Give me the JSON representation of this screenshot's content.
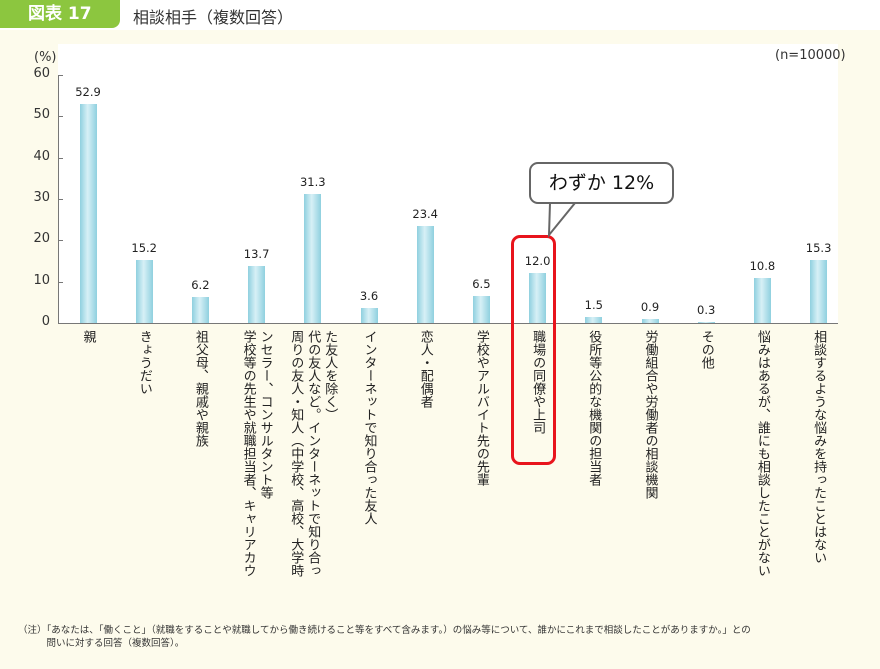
{
  "header": {
    "figure_label": "図表 17",
    "title": "相談相手（複数回答）"
  },
  "chart_data": {
    "type": "bar",
    "title": "相談相手（複数回答）",
    "ylabel": "(%)",
    "xlabel": "",
    "sample_size": "(n=10000)",
    "ylim": [
      0,
      60
    ],
    "yticks": [
      0,
      10,
      20,
      30,
      40,
      50,
      60
    ],
    "grid": false,
    "legend": null,
    "categories": [
      "親",
      "きょうだい",
      "祖父母、親戚や親族",
      "学校等の先生や就職担当者、キャリアカウンセラー、コンサルタント等",
      "周りの友人・知人（中学校、高校、大学時代の友人など。インターネットで知り合った友人を除く）",
      "インターネットで知り合った友人",
      "恋人・配偶者",
      "学校やアルバイト先の先輩",
      "職場の同僚や上司",
      "役所等公的な機関の担当者",
      "労働組合や労働者の相談機関",
      "その他",
      "悩みはあるが、誰にも相談したことがない",
      "相談するような悩みを持ったことはない"
    ],
    "values": [
      52.9,
      15.2,
      6.2,
      13.7,
      31.3,
      3.6,
      23.4,
      6.5,
      12.0,
      1.5,
      0.9,
      0.3,
      10.8,
      15.3
    ],
    "value_labels": [
      "52.9",
      "15.2",
      "6.2",
      "13.7",
      "31.3",
      "3.6",
      "23.4",
      "6.5",
      "12.0",
      "1.5",
      "0.9",
      "0.3",
      "10.8",
      "15.3"
    ],
    "annotations": [
      {
        "target": "職場の同僚や上司",
        "text": "わずか 12%",
        "highlight_color": "#e8141c"
      }
    ],
    "bar_color": "#8fd0df"
  },
  "axis": {
    "unit": "(%)",
    "n": "(n=10000)",
    "ticks": [
      "60",
      "50",
      "40",
      "30",
      "20",
      "10",
      "0"
    ]
  },
  "category_labels": [
    "親",
    "きょうだい",
    "祖父母、親戚や親族",
    "ンセラー、コンサルタント等\n学校等の先生や就職担当者、キャリアカウ",
    "た友人を除く）\n代の友人など。インターネットで知り合っ\n周りの友人・知人（中学校、高校、大学時",
    "インターネットで知り合った友人",
    "恋人・配偶者",
    "学校やアルバイト先の先輩",
    "職場の同僚や上司",
    "役所等公的な機関の担当者",
    "労働組合や労働者の相談機関",
    "その他",
    "悩みはあるが、誰にも相談したことがない",
    "相談するような悩みを持ったことはない"
  ],
  "callout": {
    "text": "わずか 12%"
  },
  "note": {
    "line1": "（注）「あなたは、「働くこと」（就職をすることや就職してから働き続けること等をすべて含みます。）の悩み等について、誰かにこれまで相談したことがありますか。」との",
    "line2": "　　　問いに対する回答（複数回答）。"
  },
  "colors": {
    "badge": "#8cc63f",
    "highlight": "#e8141c",
    "background": "#fdfbec"
  }
}
